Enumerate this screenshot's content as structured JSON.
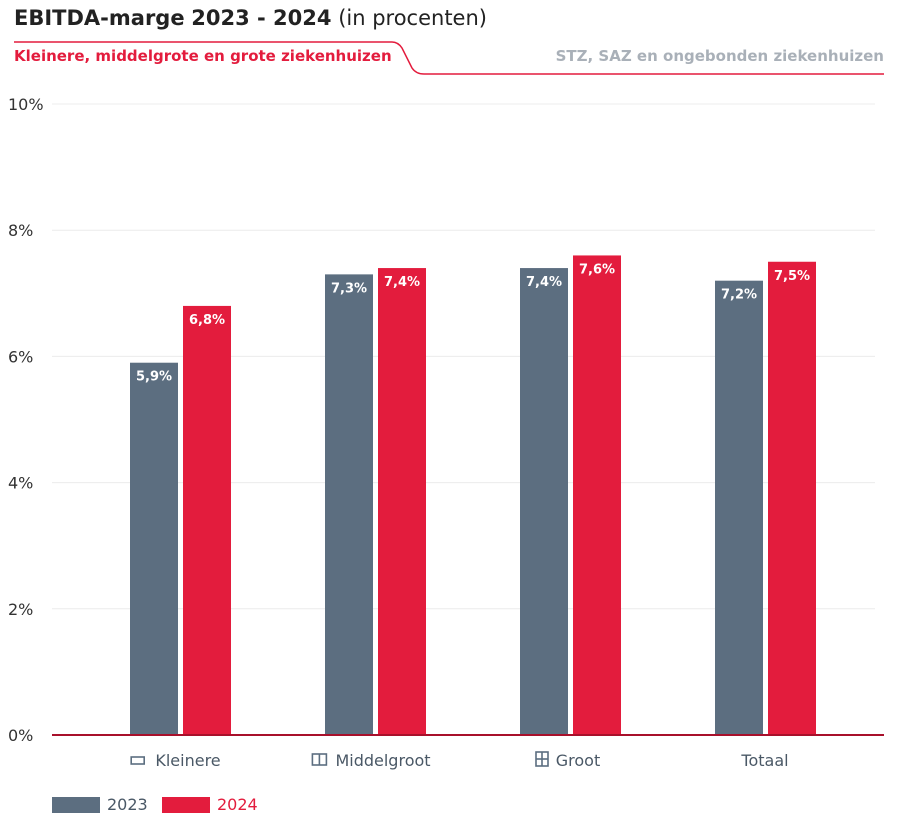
{
  "title": {
    "part1": "EBITDA-marge",
    "part2": "2023 - 2024",
    "part3": "(in procenten)"
  },
  "tabs": [
    {
      "label": "Kleinere, middelgrote en grote ziekenhuizen",
      "active": true
    },
    {
      "label": "STZ, SAZ en ongebonden ziekenhuizen",
      "active": false
    }
  ],
  "colors": {
    "accent": "#e31c3d",
    "series_2023": "#5c6e80",
    "series_2024": "#e31c3d",
    "inactive_tab": "#a9b0b8"
  },
  "chart_data": {
    "type": "bar",
    "categories": [
      "Kleinere",
      "Middelgroot",
      "Groot",
      "Totaal"
    ],
    "category_icons": [
      "small-hospital-icon",
      "medium-hospital-icon",
      "large-hospital-icon",
      ""
    ],
    "series": [
      {
        "name": "2023",
        "values": [
          5.9,
          7.3,
          7.4,
          7.2
        ],
        "labels": [
          "5,9%",
          "7,3%",
          "7,4%",
          "7,2%"
        ]
      },
      {
        "name": "2024",
        "values": [
          6.8,
          7.4,
          7.6,
          7.5
        ],
        "labels": [
          "6,8%",
          "7,4%",
          "7,6%",
          "7,5%"
        ]
      }
    ],
    "ylim": [
      0,
      10
    ],
    "yticks": [
      0,
      2,
      4,
      6,
      8,
      10
    ],
    "ytick_labels": [
      "0%",
      "2%",
      "4%",
      "6%",
      "8%",
      "10%"
    ],
    "grid": true,
    "legend": "bottom-left"
  }
}
